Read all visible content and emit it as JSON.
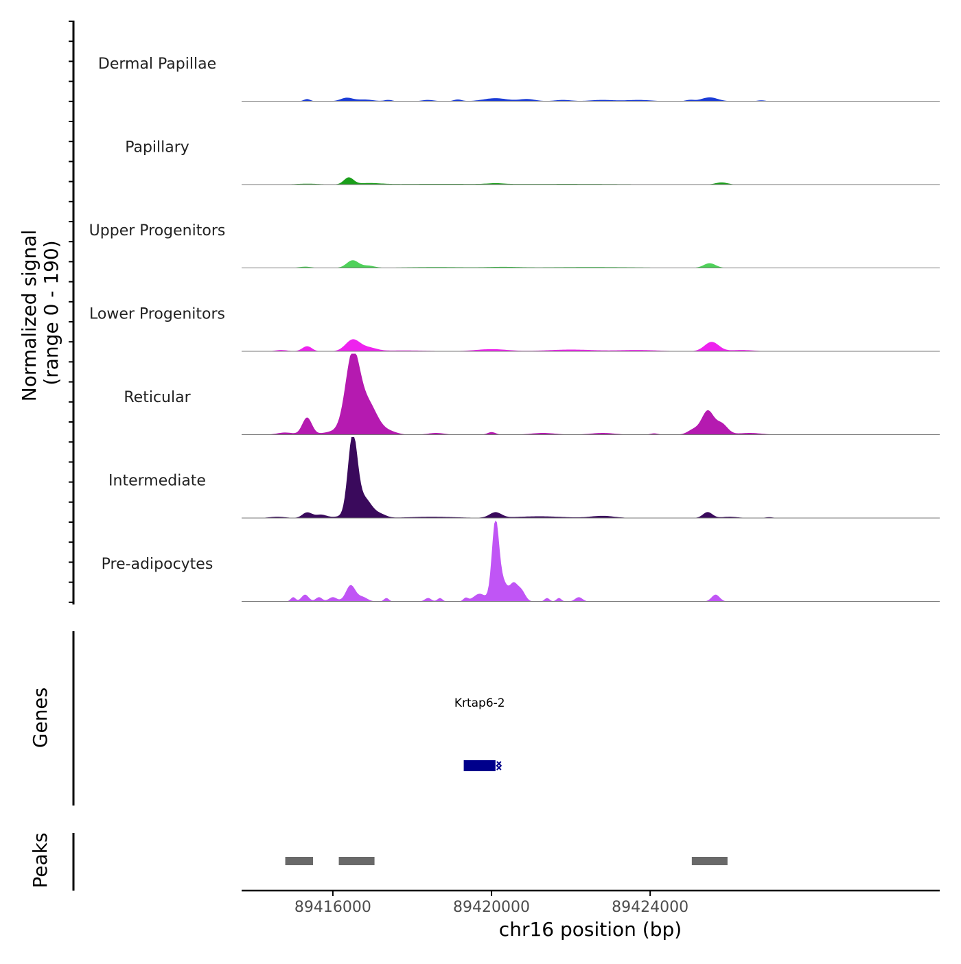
{
  "chart_data": {
    "type": "area",
    "title": "",
    "xlabel": "chr16 position (bp)",
    "ylabel_line1": "Normalized signal",
    "ylabel_line2": "(range 0 - 190)",
    "ylim": [
      0,
      190
    ],
    "xlim": [
      89413700,
      89431300
    ],
    "x_ticks": [
      89416000,
      89420000,
      89424000
    ],
    "x_tick_labels": [
      "89416000",
      "89420000",
      "89424000"
    ],
    "tracks": [
      {
        "name": "Dermal Papillae",
        "color": "#1a3bd6",
        "peaks": [
          {
            "x": 89415350,
            "h": 5,
            "w": 80
          },
          {
            "x": 89416350,
            "h": 8,
            "w": 150
          },
          {
            "x": 89416800,
            "h": 4,
            "w": 200
          },
          {
            "x": 89417400,
            "h": 3,
            "w": 100
          },
          {
            "x": 89418400,
            "h": 3,
            "w": 150
          },
          {
            "x": 89419150,
            "h": 4,
            "w": 100
          },
          {
            "x": 89420100,
            "h": 7,
            "w": 300
          },
          {
            "x": 89420900,
            "h": 5,
            "w": 200
          },
          {
            "x": 89421800,
            "h": 3,
            "w": 200
          },
          {
            "x": 89422800,
            "h": 3,
            "w": 300
          },
          {
            "x": 89423700,
            "h": 3,
            "w": 300
          },
          {
            "x": 89425000,
            "h": 3,
            "w": 100
          },
          {
            "x": 89425500,
            "h": 9,
            "w": 200
          },
          {
            "x": 89426800,
            "h": 2,
            "w": 100
          }
        ]
      },
      {
        "name": "Papillary",
        "color": "#1a9e1a",
        "peaks": [
          {
            "x": 89415350,
            "h": 2,
            "w": 300
          },
          {
            "x": 89416400,
            "h": 16,
            "w": 120
          },
          {
            "x": 89416900,
            "h": 3,
            "w": 300
          },
          {
            "x": 89418500,
            "h": 1.5,
            "w": 1200
          },
          {
            "x": 89420100,
            "h": 2,
            "w": 200
          },
          {
            "x": 89422000,
            "h": 1.5,
            "w": 1500
          },
          {
            "x": 89425800,
            "h": 5,
            "w": 150
          }
        ]
      },
      {
        "name": "Upper Progenitors",
        "color": "#4fd15a",
        "peaks": [
          {
            "x": 89415300,
            "h": 3,
            "w": 150
          },
          {
            "x": 89416500,
            "h": 18,
            "w": 150
          },
          {
            "x": 89416900,
            "h": 5,
            "w": 150
          },
          {
            "x": 89418600,
            "h": 2,
            "w": 800
          },
          {
            "x": 89420300,
            "h": 2,
            "w": 400
          },
          {
            "x": 89422500,
            "h": 2,
            "w": 1200
          },
          {
            "x": 89425500,
            "h": 11,
            "w": 150
          }
        ]
      },
      {
        "name": "Lower Progenitors",
        "color": "#ee22ee",
        "peaks": [
          {
            "x": 89414700,
            "h": 3,
            "w": 150
          },
          {
            "x": 89415350,
            "h": 12,
            "w": 120
          },
          {
            "x": 89416500,
            "h": 27,
            "w": 180
          },
          {
            "x": 89416900,
            "h": 8,
            "w": 200
          },
          {
            "x": 89417800,
            "h": 2,
            "w": 600
          },
          {
            "x": 89420000,
            "h": 5,
            "w": 400
          },
          {
            "x": 89422000,
            "h": 4,
            "w": 600
          },
          {
            "x": 89423700,
            "h": 3,
            "w": 500
          },
          {
            "x": 89425550,
            "h": 22,
            "w": 180
          },
          {
            "x": 89426300,
            "h": 3,
            "w": 300
          }
        ]
      },
      {
        "name": "Reticular",
        "color": "#b51ab0",
        "peaks": [
          {
            "x": 89414800,
            "h": 5,
            "w": 200
          },
          {
            "x": 89415350,
            "h": 40,
            "w": 120
          },
          {
            "x": 89416100,
            "h": 8,
            "w": 300
          },
          {
            "x": 89416500,
            "h": 185,
            "w": 180
          },
          {
            "x": 89416900,
            "h": 70,
            "w": 220
          },
          {
            "x": 89417400,
            "h": 8,
            "w": 200
          },
          {
            "x": 89418600,
            "h": 4,
            "w": 200
          },
          {
            "x": 89420000,
            "h": 6,
            "w": 100
          },
          {
            "x": 89421300,
            "h": 4,
            "w": 300
          },
          {
            "x": 89422800,
            "h": 4,
            "w": 300
          },
          {
            "x": 89424100,
            "h": 3,
            "w": 100
          },
          {
            "x": 89425100,
            "h": 12,
            "w": 150
          },
          {
            "x": 89425450,
            "h": 55,
            "w": 150
          },
          {
            "x": 89425800,
            "h": 25,
            "w": 150
          },
          {
            "x": 89426500,
            "h": 4,
            "w": 300
          }
        ]
      },
      {
        "name": "Intermediate",
        "color": "#3a0a5c",
        "peaks": [
          {
            "x": 89414600,
            "h": 3,
            "w": 200
          },
          {
            "x": 89415350,
            "h": 13,
            "w": 120
          },
          {
            "x": 89415700,
            "h": 8,
            "w": 150
          },
          {
            "x": 89416150,
            "h": 3,
            "w": 150
          },
          {
            "x": 89416500,
            "h": 190,
            "w": 120
          },
          {
            "x": 89416800,
            "h": 45,
            "w": 180
          },
          {
            "x": 89417200,
            "h": 8,
            "w": 150
          },
          {
            "x": 89418500,
            "h": 3,
            "w": 600
          },
          {
            "x": 89420100,
            "h": 13,
            "w": 150
          },
          {
            "x": 89421200,
            "h": 4,
            "w": 600
          },
          {
            "x": 89422800,
            "h": 5,
            "w": 300
          },
          {
            "x": 89425450,
            "h": 14,
            "w": 120
          },
          {
            "x": 89426000,
            "h": 3,
            "w": 200
          },
          {
            "x": 89427000,
            "h": 2,
            "w": 100
          }
        ]
      },
      {
        "name": "Pre-adipocytes",
        "color": "#c055f5",
        "peaks": [
          {
            "x": 89415000,
            "h": 10,
            "w": 60
          },
          {
            "x": 89415300,
            "h": 16,
            "w": 90
          },
          {
            "x": 89415650,
            "h": 10,
            "w": 80
          },
          {
            "x": 89416000,
            "h": 10,
            "w": 100
          },
          {
            "x": 89416450,
            "h": 38,
            "w": 120
          },
          {
            "x": 89416750,
            "h": 10,
            "w": 120
          },
          {
            "x": 89417350,
            "h": 8,
            "w": 60
          },
          {
            "x": 89418400,
            "h": 8,
            "w": 80
          },
          {
            "x": 89418700,
            "h": 8,
            "w": 60
          },
          {
            "x": 89419350,
            "h": 8,
            "w": 60
          },
          {
            "x": 89419700,
            "h": 18,
            "w": 150
          },
          {
            "x": 89420100,
            "h": 190,
            "w": 90
          },
          {
            "x": 89420300,
            "h": 40,
            "w": 100
          },
          {
            "x": 89420550,
            "h": 40,
            "w": 100
          },
          {
            "x": 89420750,
            "h": 25,
            "w": 100
          },
          {
            "x": 89421400,
            "h": 8,
            "w": 60
          },
          {
            "x": 89421700,
            "h": 8,
            "w": 60
          },
          {
            "x": 89422200,
            "h": 10,
            "w": 90
          },
          {
            "x": 89425650,
            "h": 16,
            "w": 100
          }
        ]
      }
    ],
    "genes_panel": {
      "title": "Genes",
      "genes": [
        {
          "name": "Krtap6-2",
          "start": 89419300,
          "end": 89420100,
          "strand": "-",
          "color": "#00008b"
        }
      ]
    },
    "peaks_panel": {
      "title": "Peaks",
      "regions": [
        {
          "start": 89414800,
          "end": 89415500
        },
        {
          "start": 89416150,
          "end": 89417050
        },
        {
          "start": 89425050,
          "end": 89425950
        }
      ],
      "color": "#696969"
    }
  }
}
